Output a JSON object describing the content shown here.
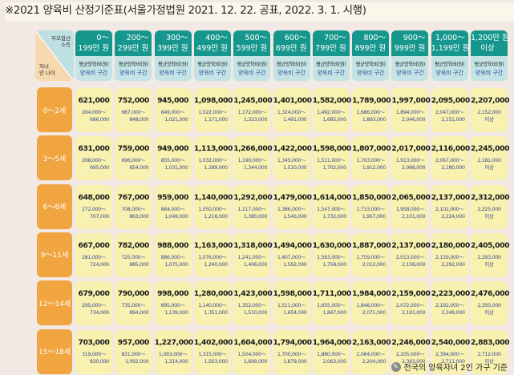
{
  "title": "※2021 양육비 산정기준표(서울가정법원 2021. 12. 22. 공표, 2022. 3. 1. 시행)",
  "corner": {
    "top": "부모합산\n소득",
    "bottom": "자녀\n만 나이"
  },
  "sub_labels": {
    "avg": "평균양육비(원)",
    "range": "양육비 구간"
  },
  "columns": [
    "0～\n199만 원",
    "200～\n299만 원",
    "300～\n399만 원",
    "400～\n499만 원",
    "500～\n599만 원",
    "600～\n699만 원",
    "700～\n799만 원",
    "800～\n899만 원",
    "900～\n999만 원",
    "1,000～\n1,199만 원",
    "1,200만 원\n이상"
  ],
  "rows": [
    {
      "age": "0～2세",
      "cells": [
        [
          "621,000",
          "264,000～",
          "686,000"
        ],
        [
          "752,000",
          "687,000～",
          "848,000"
        ],
        [
          "945,000",
          "849,000～",
          "1,021,000"
        ],
        [
          "1,098,000",
          "1,022,000～",
          "1,171,000"
        ],
        [
          "1,245,000",
          "1,172,000～",
          "1,323,000"
        ],
        [
          "1,401,000",
          "1,324,000～",
          "1,491,000"
        ],
        [
          "1,582,000",
          "1,492,000～",
          "1,685,000"
        ],
        [
          "1,789,000",
          "1,686,000～",
          "1,893,000"
        ],
        [
          "1,997,000",
          "1,894,000～",
          "2,046,000"
        ],
        [
          "2,095,000",
          "2,047,000～",
          "2,151,000"
        ],
        [
          "2,207,000",
          "2,152,000",
          "이상"
        ]
      ]
    },
    {
      "age": "3～5세",
      "cells": [
        [
          "631,000",
          "268,000～",
          "695,000"
        ],
        [
          "759,000",
          "696,000～",
          "854,000"
        ],
        [
          "949,000",
          "855,000～",
          "1,031,000"
        ],
        [
          "1,113,000",
          "1,032,000～",
          "1,189,000"
        ],
        [
          "1,266,000",
          "1,190,000～",
          "1,344,000"
        ],
        [
          "1,422,000",
          "1,345,000～",
          "1,510,000"
        ],
        [
          "1,598,000",
          "1,511,000～",
          "1,702,000"
        ],
        [
          "1,807,000",
          "1,703,000～",
          "1,912,000"
        ],
        [
          "2,017,000",
          "1,913,000～",
          "2,066,000"
        ],
        [
          "2,116,000",
          "2,067,000～",
          "2,180,000"
        ],
        [
          "2,245,000",
          "2,181,000",
          "이상"
        ]
      ]
    },
    {
      "age": "6～8세",
      "cells": [
        [
          "648,000",
          "272,000～",
          "707,000"
        ],
        [
          "767,000",
          "708,000～",
          "863,000"
        ],
        [
          "959,000",
          "864,000～",
          "1,049,000"
        ],
        [
          "1,140,000",
          "1,050,000～",
          "1,216,000"
        ],
        [
          "1,292,000",
          "1,217,000～",
          "1,385,000"
        ],
        [
          "1,479,000",
          "1,386,000～",
          "1,546,000"
        ],
        [
          "1,614,000",
          "1,547,000～",
          "1,732,000"
        ],
        [
          "1,850,000",
          "1,733,000～",
          "1,957,000"
        ],
        [
          "2,065,000",
          "1,958,000～",
          "2,101,000"
        ],
        [
          "2,137,000",
          "2,102,000～",
          "2,224,000"
        ],
        [
          "2,312,000",
          "2,225,000",
          "이상"
        ]
      ]
    },
    {
      "age": "9～11세",
      "cells": [
        [
          "667,000",
          "281,000～",
          "724,000"
        ],
        [
          "782,000",
          "725,000～",
          "885,000"
        ],
        [
          "988,000",
          "886,000～",
          "1,075,000"
        ],
        [
          "1,163,000",
          "1,076,000～",
          "1,240,000"
        ],
        [
          "1,318,000",
          "1,241,000～",
          "1,406,000"
        ],
        [
          "1,494,000",
          "1,407,000～",
          "1,562,000"
        ],
        [
          "1,630,000",
          "1,563,000～",
          "1,758,000"
        ],
        [
          "1,887,000",
          "1,759,000～",
          "2,012,000"
        ],
        [
          "2,137,000",
          "2,013,000～",
          "2,158,000"
        ],
        [
          "2,180,000",
          "2,159,000～",
          "2,292,000"
        ],
        [
          "2,405,000",
          "2,293,000",
          "이상"
        ]
      ]
    },
    {
      "age": "12～14세",
      "cells": [
        [
          "679,000",
          "295,000～",
          "734,000"
        ],
        [
          "790,000",
          "735,000～",
          "894,000"
        ],
        [
          "998,000",
          "895,000～",
          "1,139,000"
        ],
        [
          "1,280,000",
          "1,140,000～",
          "1,351,000"
        ],
        [
          "1,423,000",
          "1,352,000～",
          "1,510,000"
        ],
        [
          "1,598,000",
          "1,511,000～",
          "1,654,000"
        ],
        [
          "1,711,000",
          "1,655,000～",
          "1,847,000"
        ],
        [
          "1,984,000",
          "1,848,000～",
          "2,071,000"
        ],
        [
          "2,159,000",
          "2,072,000～",
          "2,191,000"
        ],
        [
          "2,223,000",
          "2,192,000～",
          "2,349,000"
        ],
        [
          "2,476,000",
          "2,350,000",
          "이상"
        ]
      ]
    },
    {
      "age": "15～18세",
      "cells": [
        [
          "703,000",
          "319,000～",
          "830,000"
        ],
        [
          "957,000",
          "831,000～",
          "1,092,000"
        ],
        [
          "1,227,000",
          "1,093,000～",
          "1,314,000"
        ],
        [
          "1,402,000",
          "1,315,000～",
          "1,503,000"
        ],
        [
          "1,604,000",
          "1,504,000～",
          "1,699,000"
        ],
        [
          "1,794,000",
          "1,700,000～",
          "1,879,000"
        ],
        [
          "1,964,000",
          "1,880,000～",
          "2,063,000"
        ],
        [
          "2,163,000",
          "2,064,000～",
          "2,204,000"
        ],
        [
          "2,246,000",
          "2,205,000～",
          "2,393,000"
        ],
        [
          "2,540,000",
          "2,394,000～",
          "2,711,000"
        ],
        [
          "2,883,000",
          "2,712,000",
          "이상"
        ]
      ]
    }
  ],
  "footnote": {
    "icon": "pencil-icon",
    "text": "전국의 양육자녀 2인 가구 기준"
  },
  "colors": {
    "header": "#16978d",
    "age": "#f0a540",
    "cell": "#f8f1b0"
  }
}
